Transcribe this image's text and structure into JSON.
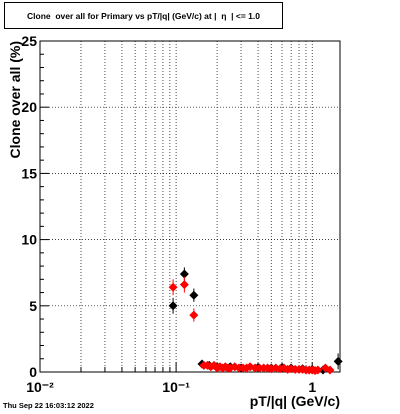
{
  "chart_data": {
    "type": "scatter",
    "title": "Clone  over all for Primary vs pT/|q| (GeV/c) at |  η  | <= 1.0",
    "xlabel": "pT/|q| (GeV/c)",
    "ylabel": "Clone  over all (%)",
    "x_scale": "log",
    "xlim": [
      0.01,
      1.6
    ],
    "ylim": [
      0,
      25
    ],
    "grid": true,
    "x_tick_labels": [
      {
        "value": 0.01,
        "label": "10⁻²"
      },
      {
        "value": 0.1,
        "label": "10⁻¹"
      },
      {
        "value": 1,
        "label": "1"
      }
    ],
    "y_tick_labels": [
      "0",
      "5",
      "10",
      "15",
      "20",
      "25"
    ],
    "series": [
      {
        "color": "#000000",
        "marker": "diamond",
        "points": [
          {
            "x": 0.095,
            "y": 5.0,
            "err": 0.6
          },
          {
            "x": 0.115,
            "y": 7.4,
            "err": 0.5
          },
          {
            "x": 0.135,
            "y": 5.8,
            "err": 0.5
          },
          {
            "x": 0.155,
            "y": 0.6,
            "err": 0.2
          },
          {
            "x": 0.175,
            "y": 0.5,
            "err": 0.1
          },
          {
            "x": 0.2,
            "y": 0.4,
            "err": 0.1
          },
          {
            "x": 0.25,
            "y": 0.4,
            "err": 0.1
          },
          {
            "x": 0.3,
            "y": 0.3,
            "err": 0.1
          },
          {
            "x": 0.4,
            "y": 0.35,
            "err": 0.1
          },
          {
            "x": 0.5,
            "y": 0.3,
            "err": 0.1
          },
          {
            "x": 0.6,
            "y": 0.35,
            "err": 0.1
          },
          {
            "x": 0.7,
            "y": 0.3,
            "err": 0.1
          },
          {
            "x": 0.85,
            "y": 0.25,
            "err": 0.1
          },
          {
            "x": 1.0,
            "y": 0.2,
            "err": 0.1
          },
          {
            "x": 1.2,
            "y": 0.15,
            "err": 0.1
          },
          {
            "x": 1.55,
            "y": 0.8,
            "err": 0.6
          }
        ]
      },
      {
        "color": "#ff0000",
        "marker": "diamond",
        "points": [
          {
            "x": 0.095,
            "y": 6.4,
            "err": 0.6
          },
          {
            "x": 0.115,
            "y": 6.6,
            "err": 0.6
          },
          {
            "x": 0.135,
            "y": 4.3,
            "err": 0.5
          },
          {
            "x": 0.16,
            "y": 0.5,
            "err": 0.2
          },
          {
            "x": 0.17,
            "y": 0.5,
            "err": 0.1
          },
          {
            "x": 0.18,
            "y": 0.4,
            "err": 0.1
          },
          {
            "x": 0.19,
            "y": 0.5,
            "err": 0.1
          },
          {
            "x": 0.2,
            "y": 0.3,
            "err": 0.1
          },
          {
            "x": 0.21,
            "y": 0.4,
            "err": 0.1
          },
          {
            "x": 0.22,
            "y": 0.3,
            "err": 0.1
          },
          {
            "x": 0.23,
            "y": 0.4,
            "err": 0.1
          },
          {
            "x": 0.24,
            "y": 0.3,
            "err": 0.1
          },
          {
            "x": 0.25,
            "y": 0.3,
            "err": 0.1
          },
          {
            "x": 0.27,
            "y": 0.4,
            "err": 0.1
          },
          {
            "x": 0.29,
            "y": 0.3,
            "err": 0.1
          },
          {
            "x": 0.31,
            "y": 0.3,
            "err": 0.1
          },
          {
            "x": 0.33,
            "y": 0.3,
            "err": 0.1
          },
          {
            "x": 0.35,
            "y": 0.4,
            "err": 0.1
          },
          {
            "x": 0.38,
            "y": 0.3,
            "err": 0.1
          },
          {
            "x": 0.41,
            "y": 0.3,
            "err": 0.1
          },
          {
            "x": 0.44,
            "y": 0.3,
            "err": 0.1
          },
          {
            "x": 0.47,
            "y": 0.3,
            "err": 0.1
          },
          {
            "x": 0.5,
            "y": 0.25,
            "err": 0.1
          },
          {
            "x": 0.54,
            "y": 0.3,
            "err": 0.1
          },
          {
            "x": 0.58,
            "y": 0.25,
            "err": 0.1
          },
          {
            "x": 0.62,
            "y": 0.3,
            "err": 0.1
          },
          {
            "x": 0.66,
            "y": 0.2,
            "err": 0.1
          },
          {
            "x": 0.7,
            "y": 0.25,
            "err": 0.1
          },
          {
            "x": 0.75,
            "y": 0.2,
            "err": 0.1
          },
          {
            "x": 0.8,
            "y": 0.2,
            "err": 0.1
          },
          {
            "x": 0.85,
            "y": 0.2,
            "err": 0.1
          },
          {
            "x": 0.9,
            "y": 0.15,
            "err": 0.1
          },
          {
            "x": 0.95,
            "y": 0.15,
            "err": 0.1
          },
          {
            "x": 1.0,
            "y": 0.15,
            "err": 0.1
          },
          {
            "x": 1.05,
            "y": 0.1,
            "err": 0.1
          },
          {
            "x": 1.1,
            "y": 0.15,
            "err": 0.1
          },
          {
            "x": 1.25,
            "y": 0.3,
            "err": 0.2
          },
          {
            "x": 1.35,
            "y": 0.15,
            "err": 0.1
          }
        ]
      }
    ]
  },
  "footer": {
    "timestamp": "Thu Sep 22 16:03:12 2022"
  }
}
